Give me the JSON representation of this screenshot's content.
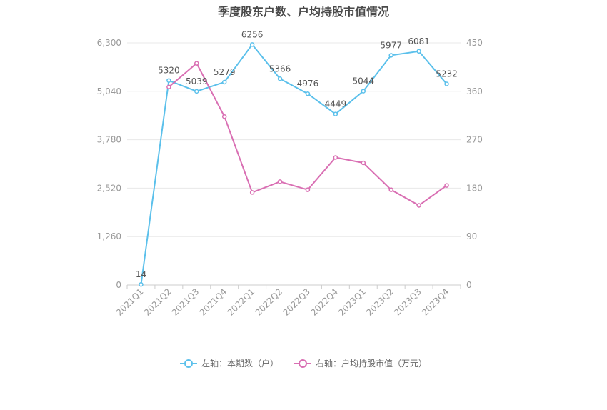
{
  "title": "季度股东户数、户均持股市值情况",
  "colors": {
    "left_series": "#5bc0eb",
    "right_series": "#d96fb3",
    "grid": "#e8e8e8",
    "axis": "#cccccc"
  },
  "legend": {
    "left_label": "左轴：本期数（户）",
    "right_label": "右轴：户均持股市值（万元）"
  },
  "chart_data": {
    "type": "line",
    "categories": [
      "2021Q1",
      "2021Q2",
      "2021Q3",
      "2021Q4",
      "2022Q1",
      "2022Q2",
      "2022Q3",
      "2022Q4",
      "2023Q1",
      "2023Q2",
      "2023Q3",
      "2023Q4"
    ],
    "left_axis": {
      "range": [
        0,
        6300
      ],
      "ticks": [
        "0",
        "1,260",
        "2,520",
        "3,780",
        "5,040",
        "6,300"
      ]
    },
    "right_axis": {
      "range": [
        0,
        450
      ],
      "ticks": [
        "0",
        "90",
        "180",
        "270",
        "360",
        "450"
      ]
    },
    "grid": true,
    "legend_position": "bottom",
    "series": [
      {
        "name": "左轴：本期数（户）",
        "axis": "left",
        "values": [
          14,
          5320,
          5039,
          5279,
          6256,
          5366,
          4976,
          4449,
          5044,
          5977,
          6081,
          5232
        ],
        "labels": [
          "14",
          "5320",
          "5039",
          "5279",
          "6256",
          "5366",
          "4976",
          "4449",
          "5044",
          "5977",
          "6081",
          "5232"
        ]
      },
      {
        "name": "右轴：户均持股市值（万元）",
        "axis": "right",
        "values": [
          0,
          368,
          412,
          313,
          172,
          192,
          177,
          237,
          227,
          177,
          148,
          185
        ]
      }
    ]
  }
}
